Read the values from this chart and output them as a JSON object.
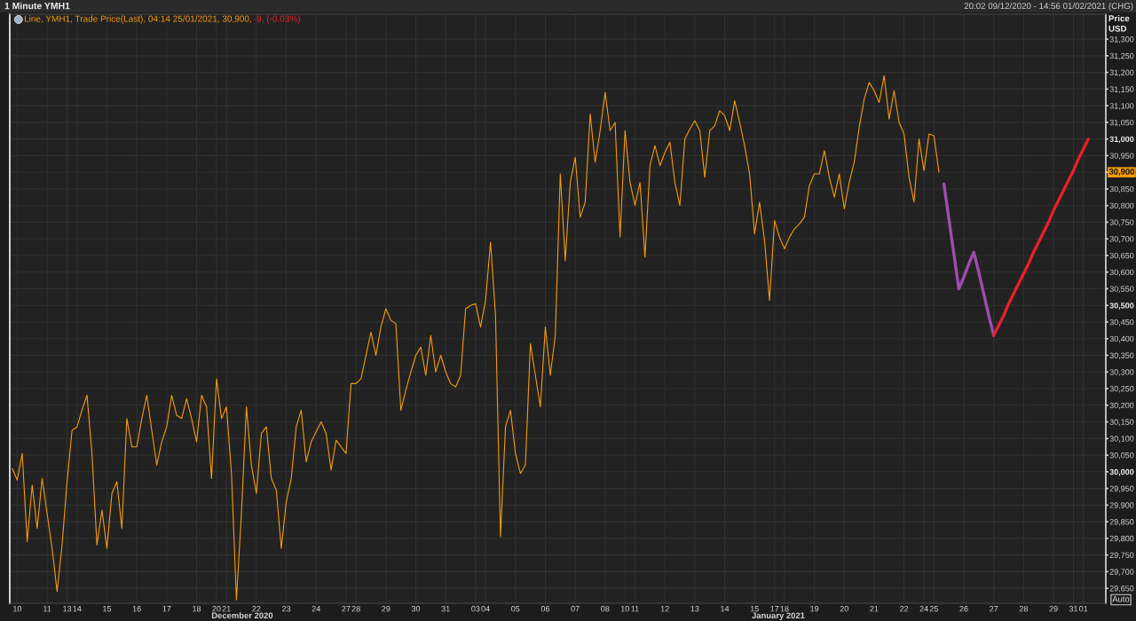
{
  "chart_data": {
    "type": "line",
    "title": "1 Minute YMH1",
    "subtitle": "20:02 09/12/2020 - 14:56 01/02/2021 (CHG)",
    "ylabel": "Price\nUSD",
    "categories": [
      null,
      "10",
      null,
      null,
      null,
      null,
      null,
      "11",
      null,
      null,
      null,
      "13",
      null,
      "14",
      null,
      null,
      null,
      null,
      null,
      "15",
      null,
      null,
      null,
      null,
      null,
      "16",
      null,
      null,
      null,
      null,
      null,
      "17",
      null,
      null,
      null,
      null,
      null,
      "18",
      null,
      null,
      null,
      "20",
      null,
      "21",
      null,
      null,
      null,
      null,
      null,
      "22",
      null,
      null,
      null,
      null,
      null,
      "23",
      null,
      null,
      null,
      null,
      null,
      "24",
      null,
      null,
      null,
      null,
      null,
      "27",
      null,
      "28",
      null,
      null,
      null,
      null,
      null,
      "29",
      null,
      null,
      null,
      null,
      null,
      "30",
      null,
      null,
      null,
      null,
      null,
      "31",
      null,
      null,
      null,
      null,
      null,
      "03",
      null,
      "04",
      null,
      null,
      null,
      null,
      null,
      "05",
      null,
      null,
      null,
      null,
      null,
      "06",
      null,
      null,
      null,
      null,
      null,
      "07",
      null,
      null,
      null,
      null,
      null,
      "08",
      null,
      null,
      null,
      "10",
      null,
      "11",
      null,
      null,
      null,
      null,
      null,
      "12",
      null,
      null,
      null,
      null,
      null,
      "13",
      null,
      null,
      null,
      null,
      null,
      "14",
      null,
      null,
      null,
      null,
      null,
      "15",
      null,
      null,
      null,
      "17",
      null,
      "18",
      null,
      null,
      null,
      null,
      null,
      "19",
      null,
      null,
      null,
      null,
      null,
      "20",
      null,
      null,
      null,
      null,
      null,
      "21",
      null,
      null,
      null,
      null,
      null,
      "22",
      null,
      null,
      null,
      "24",
      null,
      "25",
      null,
      null,
      null,
      null,
      null,
      "26",
      null,
      null,
      null,
      null,
      null,
      "27",
      null,
      null,
      null,
      null,
      null,
      "28",
      null,
      null,
      null,
      null,
      null,
      "29",
      null,
      null,
      null,
      "31",
      null,
      "01",
      null,
      null,
      null,
      null
    ],
    "series": [
      {
        "name": "Line, YMH1, Trade Price(Last), 04:14 25/01/2021, 30,900,",
        "color": "#f59b0c",
        "values": [
          30010,
          29975,
          30055,
          29790,
          29960,
          29830,
          29980,
          29875,
          29770,
          29640,
          29780,
          29970,
          30125,
          30135,
          30185,
          30230,
          30055,
          29780,
          29885,
          29770,
          29935,
          29970,
          29830,
          30160,
          30075,
          30075,
          30160,
          30230,
          30125,
          30020,
          30090,
          30135,
          30230,
          30170,
          30160,
          30220,
          30160,
          30090,
          30230,
          30195,
          29980,
          30280,
          30160,
          30195,
          29995,
          29615,
          29875,
          30195,
          30020,
          29935,
          30115,
          30135,
          29980,
          29945,
          29770,
          29910,
          29980,
          30135,
          30185,
          30030,
          30090,
          30120,
          30150,
          30115,
          30005,
          30095,
          30075,
          30055,
          30265,
          30265,
          30280,
          30350,
          30420,
          30350,
          30435,
          30490,
          30455,
          30445,
          30185,
          30245,
          30300,
          30350,
          30375,
          30290,
          30410,
          30300,
          30350,
          30300,
          30265,
          30255,
          30290,
          30490,
          30500,
          30505,
          30435,
          30515,
          30690,
          30470,
          29805,
          30135,
          30185,
          30055,
          29995,
          30020,
          30385,
          30290,
          30195,
          30435,
          30290,
          30410,
          30895,
          30635,
          30870,
          30945,
          30765,
          30810,
          31075,
          30930,
          31025,
          31140,
          31025,
          31050,
          30705,
          31025,
          30870,
          30800,
          30870,
          30645,
          30920,
          30980,
          30920,
          30960,
          30990,
          30870,
          30800,
          31000,
          31030,
          31055,
          31025,
          30885,
          31025,
          31040,
          31085,
          31070,
          31025,
          31115,
          31050,
          30980,
          30895,
          30715,
          30810,
          30695,
          30515,
          30755,
          30705,
          30670,
          30705,
          30730,
          30745,
          30765,
          30860,
          30895,
          30895,
          30965,
          30885,
          30825,
          30895,
          30790,
          30870,
          30930,
          31035,
          31120,
          31170,
          31145,
          31110,
          31190,
          31060,
          31145,
          31050,
          31015,
          30885,
          30810,
          31000,
          30905,
          31015,
          31010,
          30900,
          null,
          null,
          null,
          null,
          null,
          null,
          null,
          null,
          null,
          null,
          null,
          null,
          null,
          null,
          null,
          null,
          null,
          null,
          null,
          null,
          null,
          null,
          null,
          null,
          null,
          null,
          null,
          null,
          null,
          null,
          null,
          null,
          null
        ]
      },
      {
        "color": "#a04cb0",
        "values": [
          null,
          null,
          null,
          null,
          null,
          null,
          null,
          null,
          null,
          null,
          null,
          null,
          null,
          null,
          null,
          null,
          null,
          null,
          null,
          null,
          null,
          null,
          null,
          null,
          null,
          null,
          null,
          null,
          null,
          null,
          null,
          null,
          null,
          null,
          null,
          null,
          null,
          null,
          null,
          null,
          null,
          null,
          null,
          null,
          null,
          null,
          null,
          null,
          null,
          null,
          null,
          null,
          null,
          null,
          null,
          null,
          null,
          null,
          null,
          null,
          null,
          null,
          null,
          null,
          null,
          null,
          null,
          null,
          null,
          null,
          null,
          null,
          null,
          null,
          null,
          null,
          null,
          null,
          null,
          null,
          null,
          null,
          null,
          null,
          null,
          null,
          null,
          null,
          null,
          null,
          null,
          null,
          null,
          null,
          null,
          null,
          null,
          null,
          null,
          null,
          null,
          null,
          null,
          null,
          null,
          null,
          null,
          null,
          null,
          null,
          null,
          null,
          null,
          null,
          null,
          null,
          null,
          null,
          null,
          null,
          null,
          null,
          null,
          null,
          null,
          null,
          null,
          null,
          null,
          null,
          null,
          null,
          null,
          null,
          null,
          null,
          null,
          null,
          null,
          null,
          null,
          null,
          null,
          null,
          null,
          null,
          null,
          null,
          null,
          null,
          null,
          null,
          null,
          null,
          null,
          null,
          null,
          null,
          null,
          null,
          null,
          null,
          null,
          null,
          null,
          null,
          null,
          null,
          null,
          null,
          null,
          null,
          null,
          null,
          null,
          null,
          null,
          null,
          null,
          null,
          null,
          null,
          null,
          null,
          null,
          null,
          null,
          30865,
          30760,
          30655,
          30550,
          30585,
          30625,
          30660,
          30600,
          30535,
          30470,
          30410,
          null,
          null,
          null,
          null,
          null,
          null,
          null,
          null,
          null,
          null,
          null,
          null,
          null,
          null,
          null,
          null,
          null,
          null,
          null,
          null,
          null,
          null
        ]
      },
      {
        "color": "#e8202a",
        "values": [
          null,
          null,
          null,
          null,
          null,
          null,
          null,
          null,
          null,
          null,
          null,
          null,
          null,
          null,
          null,
          null,
          null,
          null,
          null,
          null,
          null,
          null,
          null,
          null,
          null,
          null,
          null,
          null,
          null,
          null,
          null,
          null,
          null,
          null,
          null,
          null,
          null,
          null,
          null,
          null,
          null,
          null,
          null,
          null,
          null,
          null,
          null,
          null,
          null,
          null,
          null,
          null,
          null,
          null,
          null,
          null,
          null,
          null,
          null,
          null,
          null,
          null,
          null,
          null,
          null,
          null,
          null,
          null,
          null,
          null,
          null,
          null,
          null,
          null,
          null,
          null,
          null,
          null,
          null,
          null,
          null,
          null,
          null,
          null,
          null,
          null,
          null,
          null,
          null,
          null,
          null,
          null,
          null,
          null,
          null,
          null,
          null,
          null,
          null,
          null,
          null,
          null,
          null,
          null,
          null,
          null,
          null,
          null,
          null,
          null,
          null,
          null,
          null,
          null,
          null,
          null,
          null,
          null,
          null,
          null,
          null,
          null,
          null,
          null,
          null,
          null,
          null,
          null,
          null,
          null,
          null,
          null,
          null,
          null,
          null,
          null,
          null,
          null,
          null,
          null,
          null,
          null,
          null,
          null,
          null,
          null,
          null,
          null,
          null,
          null,
          null,
          null,
          null,
          null,
          null,
          null,
          null,
          null,
          null,
          null,
          null,
          null,
          null,
          null,
          null,
          null,
          null,
          null,
          null,
          null,
          null,
          null,
          null,
          null,
          null,
          null,
          null,
          null,
          null,
          null,
          null,
          null,
          null,
          null,
          null,
          null,
          null,
          null,
          null,
          null,
          null,
          null,
          null,
          null,
          null,
          null,
          null,
          30410,
          30440,
          30470,
          30505,
          30535,
          30565,
          30595,
          30625,
          30660,
          30690,
          30720,
          30750,
          30785,
          30815,
          30845,
          30875,
          30905,
          30940,
          30970,
          31000,
          null,
          null,
          null
        ]
      }
    ],
    "ylim": [
      29605,
      31375
    ],
    "yticks": [
      {
        "value": 29650,
        "label": "29,650"
      },
      {
        "value": 29700,
        "label": "29,700"
      },
      {
        "value": 29750,
        "label": "29,750"
      },
      {
        "value": 29800,
        "label": "29,800"
      },
      {
        "value": 29850,
        "label": "29,850"
      },
      {
        "value": 29900,
        "label": "29,900"
      },
      {
        "value": 29950,
        "label": "29,950"
      },
      {
        "value": 30000,
        "label": "30,000"
      },
      {
        "value": 30050,
        "label": "30,050"
      },
      {
        "value": 30100,
        "label": "30,100"
      },
      {
        "value": 30150,
        "label": "30,150"
      },
      {
        "value": 30200,
        "label": "30,200"
      },
      {
        "value": 30250,
        "label": "30,250"
      },
      {
        "value": 30300,
        "label": "30,300"
      },
      {
        "value": 30350,
        "label": "30,350"
      },
      {
        "value": 30400,
        "label": "30,400"
      },
      {
        "value": 30450,
        "label": "30,450"
      },
      {
        "value": 30500,
        "label": "30,500"
      },
      {
        "value": 30550,
        "label": "30,550"
      },
      {
        "value": 30600,
        "label": "30,600"
      },
      {
        "value": 30650,
        "label": "30,650"
      },
      {
        "value": 30700,
        "label": "30,700"
      },
      {
        "value": 30750,
        "label": "30,750"
      },
      {
        "value": 30800,
        "label": "30,800"
      },
      {
        "value": 30850,
        "label": "30,850"
      },
      {
        "value": 30900,
        "label": null
      },
      {
        "value": 30950,
        "label": "30,950"
      },
      {
        "value": 31000,
        "label": "31,000"
      },
      {
        "value": 31050,
        "label": "31,050"
      },
      {
        "value": 31100,
        "label": "31,100"
      },
      {
        "value": 31150,
        "label": "31,150"
      },
      {
        "value": 31200,
        "label": "31,200"
      },
      {
        "value": 31250,
        "label": "31,250"
      },
      {
        "value": 31300,
        "label": "31,300"
      }
    ],
    "grid": true,
    "legend": "top left",
    "annotations": [
      "December 2020",
      "January 2021",
      "-9, (-0.03%)",
      "Auto",
      {
        "text": "30,900",
        "y": 30900
      }
    ]
  }
}
